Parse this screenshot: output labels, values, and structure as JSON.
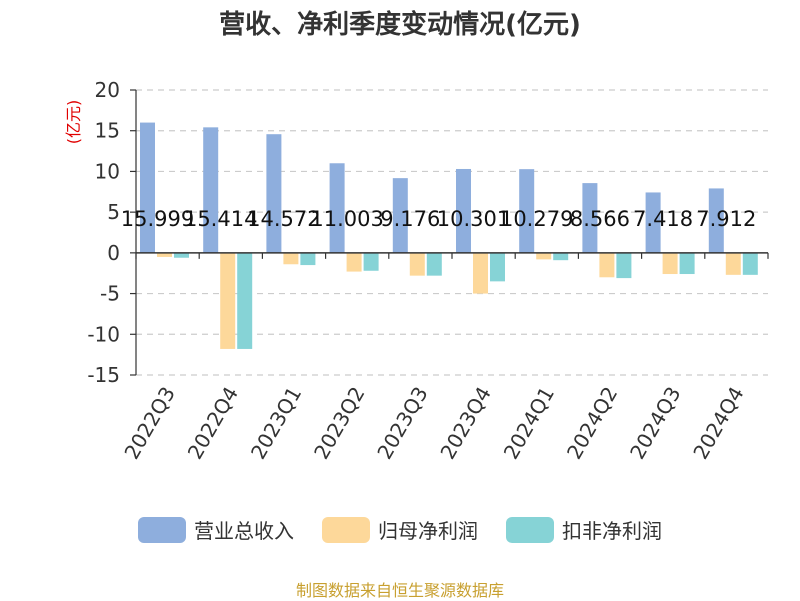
{
  "chart_data": {
    "type": "bar",
    "title": "营收、净利季度变动情况(亿元)",
    "unit_label": "(亿元)",
    "categories": [
      "2022Q3",
      "2022Q4",
      "2023Q1",
      "2023Q2",
      "2023Q3",
      "2023Q4",
      "2024Q1",
      "2024Q2",
      "2024Q3",
      "2024Q4"
    ],
    "series": [
      {
        "name": "营业总收入",
        "color": "#8eaedd",
        "values": [
          15.999,
          15.414,
          14.572,
          11.003,
          9.176,
          10.301,
          10.279,
          8.566,
          7.418,
          7.912
        ],
        "labels": [
          "15.999",
          "15.414",
          "14.572",
          "11.003",
          "9.176",
          "10.301",
          "10.279",
          "8.566",
          "7.418",
          "7.912"
        ]
      },
      {
        "name": "归母净利润",
        "color": "#fdd89a",
        "values": [
          -0.5,
          -11.8,
          -1.4,
          -2.3,
          -2.8,
          -5.0,
          -0.8,
          -3.0,
          -2.6,
          -2.7
        ]
      },
      {
        "name": "扣非净利润",
        "color": "#86d3d6",
        "values": [
          -0.6,
          -11.8,
          -1.5,
          -2.2,
          -2.8,
          -3.5,
          -0.9,
          -3.1,
          -2.6,
          -2.7
        ]
      }
    ],
    "yticks": [
      "20",
      "15",
      "10",
      "5",
      "0",
      "-5",
      "-10",
      "-15"
    ],
    "ylim": [
      -15,
      20
    ],
    "grid": true,
    "legend_position": "bottom"
  },
  "source": "制图数据来自恒生聚源数据库"
}
